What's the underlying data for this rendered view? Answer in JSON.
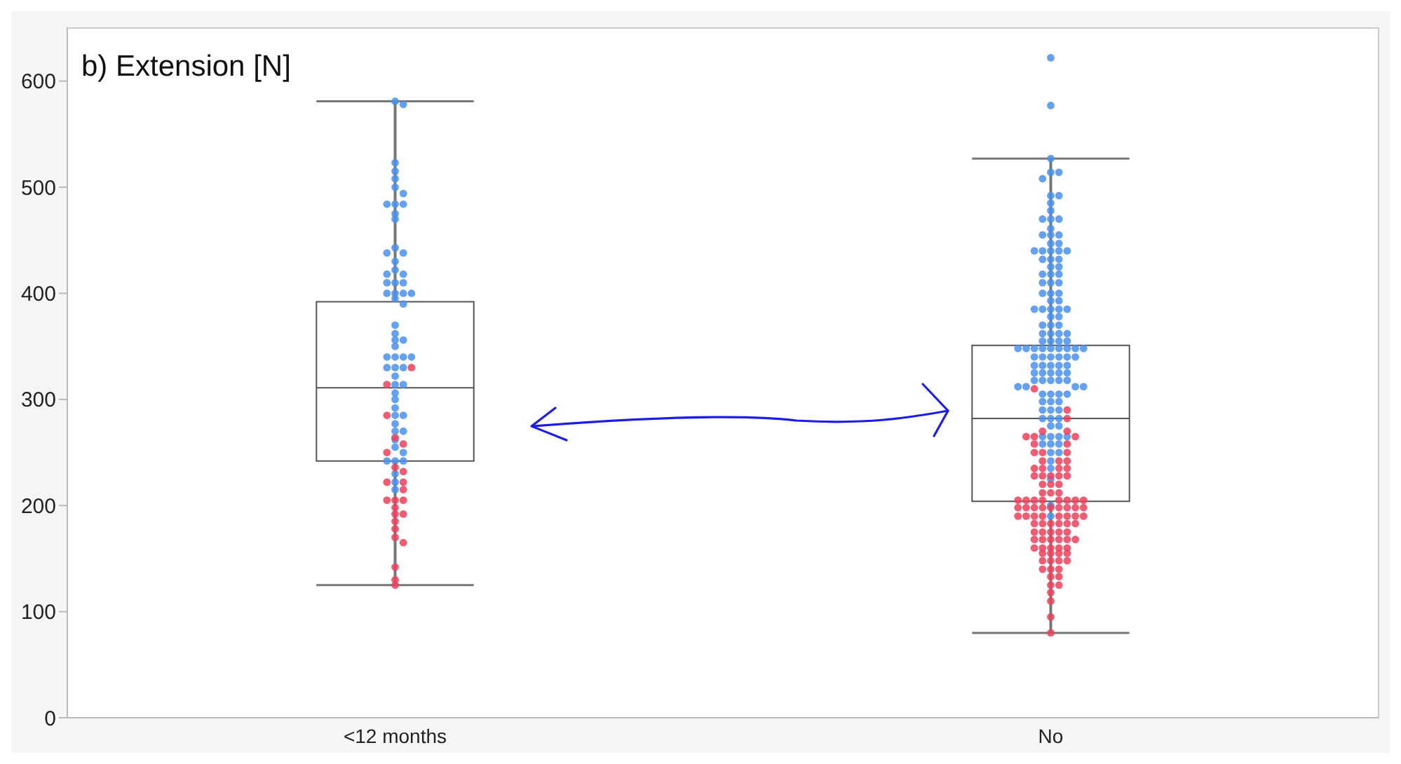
{
  "chart_data": {
    "type": "box",
    "title": "b) Extension [N]",
    "categories": [
      "<12 months",
      "No"
    ],
    "ylim": [
      0,
      650
    ],
    "yticks": [
      0,
      100,
      200,
      300,
      400,
      500,
      600
    ],
    "boxes": [
      {
        "low": 125,
        "q1": 242,
        "median": 311,
        "q3": 392,
        "high": 581
      },
      {
        "low": 80,
        "q1": 204,
        "median": 282,
        "q3": 351,
        "high": 527
      }
    ],
    "series": [
      {
        "type": "scatter",
        "color": "#4a90f0",
        "values": [
          581,
          578,
          523,
          515,
          508,
          500,
          494,
          484,
          484,
          484,
          475,
          470,
          443,
          438,
          438,
          430,
          422,
          418,
          418,
          410,
          410,
          410,
          400,
          400,
          400,
          400,
          395,
          390,
          370,
          362,
          356,
          356,
          350,
          340,
          340,
          340,
          340,
          330,
          330,
          330,
          322,
          314,
          314,
          306,
          300,
          292,
          285,
          285,
          277,
          270,
          270,
          262,
          255,
          250,
          242,
          242,
          242,
          230,
          222,
          215
        ],
        "x": [
          "<12 months",
          "<12 months",
          "<12 months",
          "<12 months",
          "<12 months",
          "<12 months",
          "<12 months",
          "<12 months",
          "<12 months",
          "<12 months",
          "<12 months",
          "<12 months",
          "<12 months",
          "<12 months",
          "<12 months",
          "<12 months",
          "<12 months",
          "<12 months",
          "<12 months",
          "<12 months",
          "<12 months",
          "<12 months",
          "<12 months",
          "<12 months",
          "<12 months",
          "<12 months",
          "<12 months",
          "<12 months",
          "<12 months",
          "<12 months",
          "<12 months",
          "<12 months",
          "<12 months",
          "<12 months",
          "<12 months",
          "<12 months",
          "<12 months",
          "<12 months",
          "<12 months",
          "<12 months",
          "<12 months",
          "<12 months",
          "<12 months",
          "<12 months",
          "<12 months",
          "<12 months",
          "<12 months",
          "<12 months",
          "<12 months",
          "<12 months",
          "<12 months",
          "<12 months",
          "<12 months",
          "<12 months",
          "<12 months",
          "<12 months",
          "<12 months",
          "<12 months",
          "<12 months",
          "<12 months"
        ]
      },
      {
        "type": "scatter",
        "color": "#f0405a",
        "values": [
          330,
          314,
          285,
          264,
          258,
          250,
          236,
          232,
          222,
          222,
          215,
          205,
          205,
          205,
          198,
          192,
          192,
          185,
          178,
          170,
          165,
          142,
          130,
          125
        ],
        "x": [
          "<12 months",
          "<12 months",
          "<12 months",
          "<12 months",
          "<12 months",
          "<12 months",
          "<12 months",
          "<12 months",
          "<12 months",
          "<12 months",
          "<12 months",
          "<12 months",
          "<12 months",
          "<12 months",
          "<12 months",
          "<12 months",
          "<12 months",
          "<12 months",
          "<12 months",
          "<12 months",
          "<12 months",
          "<12 months",
          "<12 months",
          "<12 months"
        ]
      },
      {
        "type": "scatter",
        "color": "#4a90f0",
        "values": [
          622,
          577,
          527,
          514,
          514,
          508,
          492,
          492,
          485,
          478,
          470,
          470,
          470,
          461,
          455,
          455,
          455,
          447,
          447,
          440,
          440,
          440,
          440,
          440,
          432,
          432,
          432,
          425,
          425,
          418,
          418,
          418,
          410,
          410,
          410,
          400,
          400,
          400,
          393,
          393,
          385,
          385,
          385,
          385,
          385,
          378,
          378,
          370,
          370,
          370,
          362,
          362,
          362,
          362,
          355,
          355,
          355,
          355,
          348,
          348,
          348,
          348,
          348,
          348,
          348,
          348,
          348,
          340,
          340,
          340,
          340,
          340,
          340,
          332,
          332,
          332,
          332,
          332,
          325,
          325,
          325,
          325,
          325,
          318,
          318,
          318,
          318,
          318,
          312,
          312,
          312,
          312,
          305,
          305,
          305,
          305,
          298,
          298,
          298,
          290,
          290,
          290,
          282,
          282,
          282,
          275,
          275,
          265,
          265,
          265,
          265,
          258,
          258,
          258,
          250,
          250,
          242,
          235,
          225,
          200,
          190
        ],
        "x": [
          "No",
          "No",
          "No",
          "No",
          "No",
          "No",
          "No",
          "No",
          "No",
          "No",
          "No",
          "No",
          "No",
          "No",
          "No",
          "No",
          "No",
          "No",
          "No",
          "No",
          "No",
          "No",
          "No",
          "No",
          "No",
          "No",
          "No",
          "No",
          "No",
          "No",
          "No",
          "No",
          "No",
          "No",
          "No",
          "No",
          "No",
          "No",
          "No",
          "No",
          "No",
          "No",
          "No",
          "No",
          "No",
          "No",
          "No",
          "No",
          "No",
          "No",
          "No",
          "No",
          "No",
          "No",
          "No",
          "No",
          "No",
          "No",
          "No",
          "No",
          "No",
          "No",
          "No",
          "No",
          "No",
          "No",
          "No",
          "No",
          "No",
          "No",
          "No",
          "No",
          "No",
          "No",
          "No",
          "No",
          "No",
          "No",
          "No",
          "No",
          "No",
          "No",
          "No",
          "No",
          "No",
          "No",
          "No",
          "No",
          "No",
          "No",
          "No",
          "No",
          "No",
          "No",
          "No",
          "No",
          "No",
          "No",
          "No",
          "No",
          "No",
          "No",
          "No",
          "No",
          "No",
          "No",
          "No",
          "No",
          "No",
          "No",
          "No",
          "No",
          "No",
          "No",
          "No",
          "No",
          "No",
          "No",
          "No",
          "No",
          "No"
        ]
      },
      {
        "type": "scatter",
        "color": "#f0405a",
        "values": [
          310,
          290,
          282,
          270,
          270,
          265,
          265,
          265,
          258,
          258,
          250,
          250,
          250,
          242,
          242,
          242,
          235,
          235,
          235,
          235,
          228,
          228,
          228,
          228,
          228,
          220,
          220,
          220,
          212,
          212,
          212,
          205,
          205,
          205,
          205,
          205,
          205,
          205,
          205,
          198,
          198,
          198,
          198,
          198,
          198,
          198,
          198,
          198,
          190,
          190,
          190,
          190,
          190,
          190,
          190,
          190,
          183,
          183,
          183,
          183,
          183,
          183,
          175,
          175,
          175,
          175,
          175,
          168,
          168,
          168,
          168,
          168,
          168,
          160,
          160,
          160,
          160,
          160,
          155,
          155,
          155,
          155,
          148,
          148,
          148,
          148,
          140,
          140,
          140,
          133,
          133,
          125,
          125,
          118,
          110,
          95,
          80
        ],
        "x": [
          "No",
          "No",
          "No",
          "No",
          "No",
          "No",
          "No",
          "No",
          "No",
          "No",
          "No",
          "No",
          "No",
          "No",
          "No",
          "No",
          "No",
          "No",
          "No",
          "No",
          "No",
          "No",
          "No",
          "No",
          "No",
          "No",
          "No",
          "No",
          "No",
          "No",
          "No",
          "No",
          "No",
          "No",
          "No",
          "No",
          "No",
          "No",
          "No",
          "No",
          "No",
          "No",
          "No",
          "No",
          "No",
          "No",
          "No",
          "No",
          "No",
          "No",
          "No",
          "No",
          "No",
          "No",
          "No",
          "No",
          "No",
          "No",
          "No",
          "No",
          "No",
          "No",
          "No",
          "No",
          "No",
          "No",
          "No",
          "No",
          "No",
          "No",
          "No",
          "No",
          "No",
          "No",
          "No",
          "No",
          "No",
          "No",
          "No",
          "No",
          "No",
          "No",
          "No",
          "No",
          "No",
          "No",
          "No",
          "No",
          "No",
          "No",
          "No",
          "No",
          "No",
          "No",
          "No",
          "No",
          "No"
        ]
      }
    ]
  }
}
